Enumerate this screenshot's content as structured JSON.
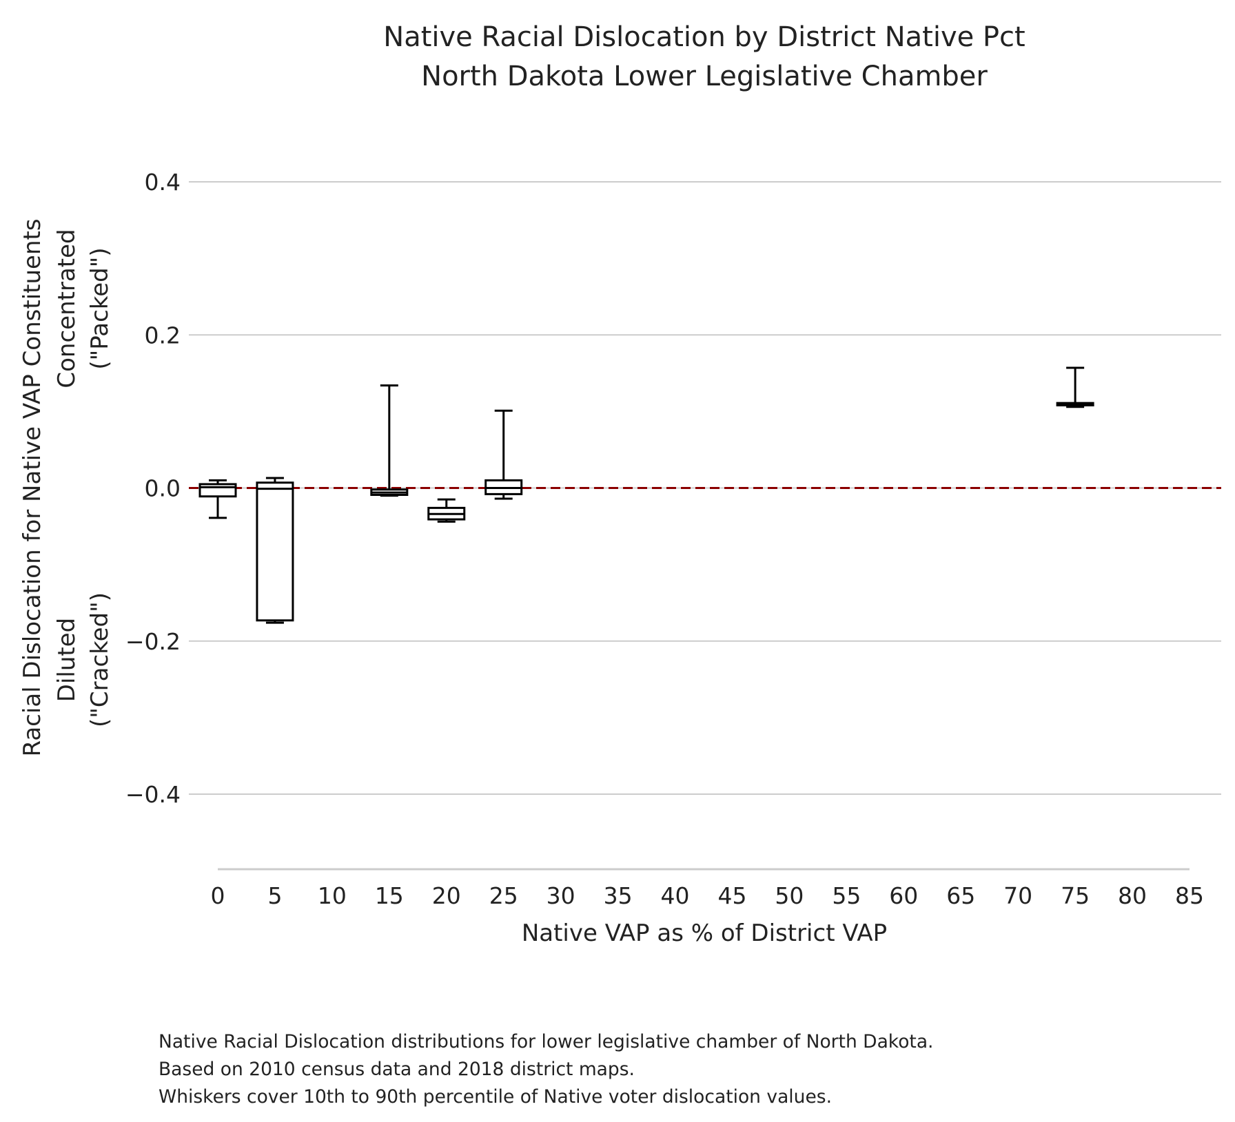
{
  "chart_data": {
    "type": "boxplot",
    "title": [
      "Native Racial Dislocation by District Native Pct",
      "North Dakota Lower Legislative Chamber"
    ],
    "xlabel": "Native VAP as % of District VAP",
    "ylabel": [
      "Racial Dislocation for Native VAP Constituents",
      "Concentrated",
      "(\"Packed\")",
      "Diluted",
      "(\"Cracked\")"
    ],
    "x_ticks": [
      0,
      5,
      10,
      15,
      20,
      25,
      30,
      35,
      40,
      45,
      50,
      55,
      60,
      65,
      70,
      75,
      80,
      85
    ],
    "y_ticks": [
      -0.4,
      -0.2,
      0.0,
      0.2,
      0.4
    ],
    "y_tick_labels": [
      "−0.4",
      "−0.2",
      "0.0",
      "0.2",
      "0.4"
    ],
    "xlim": [
      -2.5,
      87.5
    ],
    "ylim": [
      -0.5,
      0.5
    ],
    "grid": "horizontal",
    "reference_line": {
      "y": 0.0,
      "style": "dashed",
      "color": "#8b0000"
    },
    "boxes": [
      {
        "x": 0,
        "whisker_low": -0.039,
        "q1": -0.011,
        "median": 0.001,
        "q3": 0.005,
        "whisker_high": 0.01
      },
      {
        "x": 5,
        "whisker_low": -0.176,
        "q1": -0.173,
        "median": -0.001,
        "q3": 0.007,
        "whisker_high": 0.013
      },
      {
        "x": 15,
        "whisker_low": -0.01,
        "q1": -0.009,
        "median": -0.006,
        "q3": -0.002,
        "whisker_high": 0.134
      },
      {
        "x": 20,
        "whisker_low": -0.044,
        "q1": -0.041,
        "median": -0.034,
        "q3": -0.026,
        "whisker_high": -0.015
      },
      {
        "x": 25,
        "whisker_low": -0.014,
        "q1": -0.008,
        "median": 0.0,
        "q3": 0.01,
        "whisker_high": 0.101
      },
      {
        "x": 75,
        "whisker_low": 0.106,
        "q1": 0.108,
        "median": 0.11,
        "q3": 0.111,
        "whisker_high": 0.157
      }
    ]
  },
  "caption": [
    "Native Racial Dislocation distributions for lower legislative chamber of North Dakota.",
    "Based on 2010 census data and 2018 district maps.",
    "Whiskers cover 10th to 90th percentile of Native voter dislocation values."
  ],
  "colors": {
    "grid": "#cccccc",
    "box": "#000000",
    "reference": "#8b0000",
    "text": "#222222"
  }
}
